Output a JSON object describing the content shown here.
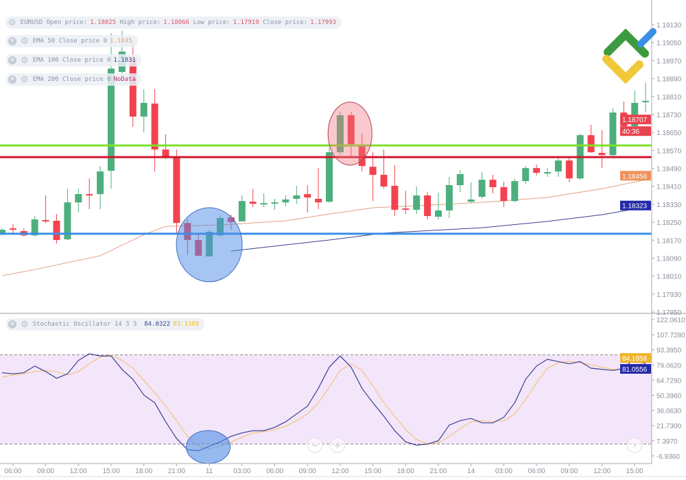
{
  "legend": {
    "symbol": "EURUSD",
    "open_label": "Open price:",
    "open": "1.18025",
    "high_label": "High price:",
    "high": "1.18066",
    "low_label": "Low price:",
    "low": "1.17919",
    "close_label": "Close price:",
    "close": "1.17993",
    "ema": [
      {
        "label": "EMA 50 Close price 0",
        "value": "1.1845",
        "color": "#e8a070"
      },
      {
        "label": "EMA 100 Close price 0",
        "value": "1.1831",
        "color": "#3a3f8f"
      },
      {
        "label": "EMA 200 Close price 0",
        "value": "NoData",
        "color": "#b0306a"
      }
    ],
    "stoch_label": "Stochastic Oscillator 14 3 3",
    "stoch_k": "84.0322",
    "stoch_d": "83.3389"
  },
  "price_axis": {
    "ticks": [
      "1.19130",
      "1.19050",
      "1.18970",
      "1.18890",
      "1.18810",
      "1.18730",
      "1.18650",
      "1.18570",
      "1.18490",
      "1.18410",
      "1.18330",
      "1.18250",
      "1.18170",
      "1.18090",
      "1.18010",
      "1.17930",
      "1.17850"
    ],
    "labels": [
      {
        "text": "1.18707",
        "price": 1.18707,
        "color": "#e8434f"
      },
      {
        "text": "40:36",
        "price": 1.1865,
        "color": "#e8434f"
      },
      {
        "text": "1.18456",
        "price": 1.18456,
        "color": "#f0905a"
      },
      {
        "text": "1.18323",
        "price": 1.18323,
        "color": "#2328a8"
      }
    ]
  },
  "stoch_axis": {
    "ticks": [
      "122.0610",
      "107.7280",
      "93.3950",
      "79.0620",
      "64.7290",
      "50.3960",
      "36.0630",
      "21.7300",
      "7.3970",
      "-6.9360"
    ],
    "labels": [
      {
        "text": "84.1858",
        "value": 84.1858,
        "color": "#f0b429"
      },
      {
        "text": "81.0556",
        "value": 81.0556,
        "color": "#2328a8"
      }
    ],
    "upper_level": 90,
    "lower_level": 10
  },
  "time_axis": [
    "06:00",
    "09:00",
    "12:00",
    "15:00",
    "18:00",
    "21:00",
    "11",
    "03:00",
    "06:00",
    "09:00",
    "12:00",
    "15:00",
    "18:00",
    "21:00",
    "14",
    "03:00",
    "06:00",
    "09:00",
    "12:00",
    "15:00"
  ],
  "colors": {
    "up": "#4caf7d",
    "down": "#f2424f",
    "support_green": "#7ee02a",
    "resistance_red": "#d0162e",
    "support_blue": "#3a8ee6",
    "ema50": "#e0a080",
    "ema100": "#3a3f8f",
    "stoch_k": "#3a3f8f",
    "stoch_d": "#f5c27a",
    "stoch_bg": "#f3e6fa"
  },
  "chart_data": {
    "type": "candlestick",
    "symbol": "EURUSD",
    "ylim": [
      1.1785,
      1.1913
    ],
    "ohlc": [
      [
        1.18197,
        1.18221,
        1.1819,
        1.18215
      ],
      [
        1.18221,
        1.18239,
        1.182,
        1.18215
      ],
      [
        1.18209,
        1.18221,
        1.18184,
        1.1819
      ],
      [
        1.1819,
        1.18276,
        1.18184,
        1.18261
      ],
      [
        1.18258,
        1.18368,
        1.18245,
        1.18252
      ],
      [
        1.18255,
        1.18285,
        1.18154,
        1.18169
      ],
      [
        1.18172,
        1.18398,
        1.18169,
        1.18337
      ],
      [
        1.18337,
        1.18398,
        1.18291,
        1.18374
      ],
      [
        1.18374,
        1.18444,
        1.18307,
        1.18371
      ],
      [
        1.18374,
        1.18499,
        1.18307,
        1.18475
      ],
      [
        1.18478,
        1.19093,
        1.18398,
        1.18934
      ],
      [
        1.18919,
        1.19102,
        1.18903,
        1.1901
      ],
      [
        1.1898,
        1.19056,
        1.18674,
        1.1872
      ],
      [
        1.1872,
        1.18842,
        1.18649,
        1.18781
      ],
      [
        1.18778,
        1.18842,
        1.18475,
        1.18573
      ],
      [
        1.18573,
        1.1864,
        1.1853,
        1.18542
      ],
      [
        1.18536,
        1.18573,
        1.182,
        1.18245
      ],
      [
        1.18245,
        1.18261,
        1.18102,
        1.18169
      ],
      [
        1.18169,
        1.18193,
        1.18096,
        1.18099
      ],
      [
        1.18096,
        1.18215,
        1.18096,
        1.18206
      ],
      [
        1.1819,
        1.18279,
        1.18184,
        1.18267
      ],
      [
        1.1827,
        1.18282,
        1.18215,
        1.18249
      ],
      [
        1.18252,
        1.18368,
        1.18252,
        1.18343
      ],
      [
        1.1834,
        1.18398,
        1.18316,
        1.18331
      ],
      [
        1.18334,
        1.18377,
        1.18316,
        1.18334
      ],
      [
        1.18331,
        1.18353,
        1.18304,
        1.18337
      ],
      [
        1.18337,
        1.18368,
        1.18319,
        1.1835
      ],
      [
        1.18353,
        1.18411,
        1.18331,
        1.18368
      ],
      [
        1.18374,
        1.18414,
        1.18291,
        1.18359
      ],
      [
        1.18353,
        1.1849,
        1.18307,
        1.18337
      ],
      [
        1.1834,
        1.18582,
        1.18334,
        1.18561
      ],
      [
        1.18561,
        1.18741,
        1.18548,
        1.18726
      ],
      [
        1.18726,
        1.18741,
        1.18542,
        1.18597
      ],
      [
        1.18588,
        1.18643,
        1.18475,
        1.18499
      ],
      [
        1.18496,
        1.18561,
        1.18343,
        1.1846
      ],
      [
        1.1846,
        1.18573,
        1.18398,
        1.18408
      ],
      [
        1.18411,
        1.18503,
        1.18276,
        1.18304
      ],
      [
        1.1831,
        1.18389,
        1.18285,
        1.18307
      ],
      [
        1.18304,
        1.18408,
        1.18285,
        1.18368
      ],
      [
        1.18368,
        1.18383,
        1.18261,
        1.18276
      ],
      [
        1.18273,
        1.1838,
        1.18261,
        1.18301
      ],
      [
        1.18301,
        1.18451,
        1.18267,
        1.18414
      ],
      [
        1.18414,
        1.18481,
        1.18383,
        1.18463
      ],
      [
        1.1834,
        1.18426,
        1.18334,
        1.1835
      ],
      [
        1.18362,
        1.18472,
        1.18353,
        1.18438
      ],
      [
        1.18438,
        1.1846,
        1.18377,
        1.18405
      ],
      [
        1.18405,
        1.18429,
        1.18316,
        1.18343
      ],
      [
        1.18343,
        1.18444,
        1.18337,
        1.18432
      ],
      [
        1.18432,
        1.18499,
        1.1842,
        1.1849
      ],
      [
        1.1849,
        1.18506,
        1.18457,
        1.18469
      ],
      [
        1.18472,
        1.1849,
        1.18451,
        1.18472
      ],
      [
        1.18475,
        1.18536,
        1.18451,
        1.18524
      ],
      [
        1.18524,
        1.18542,
        1.18426,
        1.18444
      ],
      [
        1.18444,
        1.18643,
        1.18438,
        1.18637
      ],
      [
        1.18637,
        1.18683,
        1.18558,
        1.18561
      ],
      [
        1.18558,
        1.18659,
        1.1849,
        1.18548
      ],
      [
        1.18548,
        1.18757,
        1.18542,
        1.18738
      ],
      [
        1.18738,
        1.18787,
        1.18634,
        1.18677
      ],
      [
        1.18677,
        1.18836,
        1.1864,
        1.18781
      ],
      [
        1.1879,
        1.18873,
        1.18741,
        1.1879
      ]
    ],
    "ema50": [
      [
        0,
        1.1801
      ],
      [
        3,
        1.18037
      ],
      [
        9,
        1.18099
      ],
      [
        13,
        1.18193
      ],
      [
        15,
        1.1823
      ],
      [
        20,
        1.18236
      ],
      [
        26,
        1.18255
      ],
      [
        30,
        1.18285
      ],
      [
        34,
        1.18313
      ],
      [
        38,
        1.18322
      ],
      [
        44,
        1.18337
      ],
      [
        50,
        1.18359
      ],
      [
        55,
        1.18398
      ],
      [
        59,
        1.18438
      ]
    ],
    "ema100": [
      [
        21,
        1.1812
      ],
      [
        30,
        1.18169
      ],
      [
        35,
        1.182
      ],
      [
        44,
        1.18224
      ],
      [
        50,
        1.18252
      ],
      [
        55,
        1.18282
      ],
      [
        59,
        1.18316
      ]
    ],
    "horizontal_lines": [
      {
        "price": 1.18591,
        "color": "#7ee02a"
      },
      {
        "price": 1.18539,
        "color": "#d0162e"
      },
      {
        "price": 1.18197,
        "color": "#3a8ee6"
      }
    ],
    "highlights": [
      {
        "pane": "price",
        "center_index": 19,
        "center_price": 1.18148,
        "color": "blue"
      },
      {
        "pane": "price",
        "center_index": 31.9,
        "center_price": 1.18644,
        "color": "red"
      },
      {
        "pane": "stoch",
        "center_index": 18.9,
        "center_value": 7.4,
        "color": "blue"
      }
    ],
    "stoch_ylim": [
      -6.936,
      122.061
    ],
    "stoch_k": [
      74,
      73,
      74,
      80,
      75,
      69,
      73,
      85,
      91,
      89,
      89,
      77,
      68,
      54,
      47,
      30,
      15,
      5,
      4,
      8,
      12,
      17,
      20,
      22,
      22,
      25,
      30,
      37,
      44,
      60,
      79,
      89,
      79,
      60,
      47,
      35,
      22,
      12,
      9,
      10,
      13,
      27,
      31,
      33,
      29,
      29,
      34,
      47,
      68,
      80,
      86,
      84,
      82,
      84,
      78,
      77,
      76,
      78,
      87,
      82
    ],
    "stoch_d": [
      70,
      72,
      73,
      75,
      76,
      75,
      72,
      75,
      82,
      88,
      90,
      85,
      78,
      67,
      56,
      44,
      31,
      17,
      8,
      6,
      8,
      12,
      16,
      20,
      21,
      23,
      26,
      31,
      37,
      47,
      61,
      76,
      82,
      76,
      62,
      47,
      35,
      23,
      14,
      10,
      11,
      17,
      24,
      30,
      31,
      30,
      31,
      37,
      50,
      65,
      78,
      83,
      84,
      83,
      81,
      79,
      77,
      77,
      80,
      84
    ]
  }
}
